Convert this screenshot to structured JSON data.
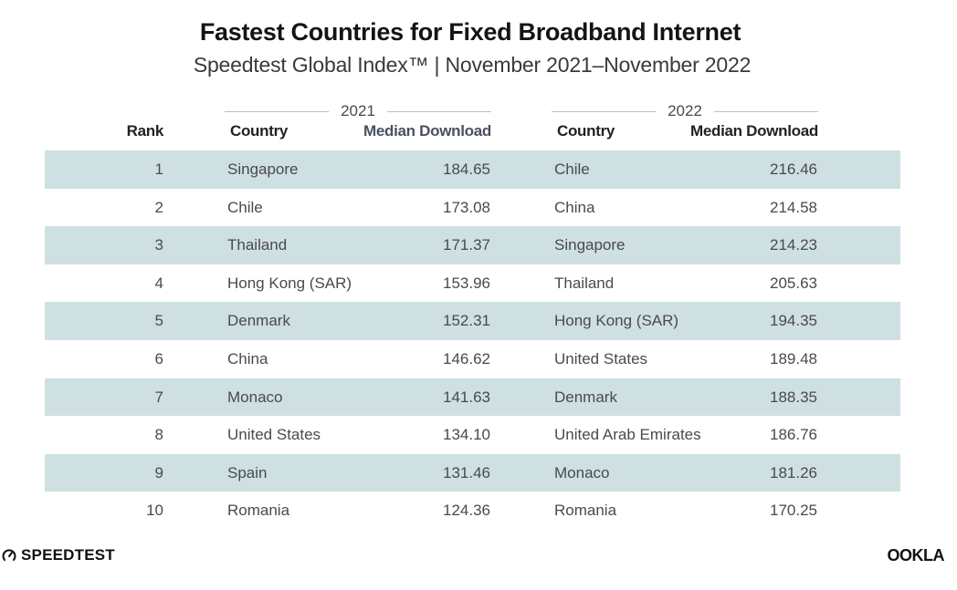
{
  "title": "Fastest Countries for Fixed Broadband Internet",
  "subtitle": "Speedtest Global Index™ | November 2021–November 2022",
  "headers": {
    "rank": "Rank",
    "country": "Country",
    "median_download": "Median Download"
  },
  "years": [
    "2021",
    "2022"
  ],
  "chart_data": {
    "type": "table",
    "title": "Fastest Countries for Fixed Broadband Internet",
    "subtitle": "Speedtest Global Index™ | November 2021–November 2022",
    "columns": [
      "Rank",
      "2021 Country",
      "2021 Median Download",
      "2022 Country",
      "2022 Median Download"
    ],
    "rows": [
      {
        "rank": "1",
        "country_2021": "Singapore",
        "download_2021": "184.65",
        "country_2022": "Chile",
        "download_2022": "216.46"
      },
      {
        "rank": "2",
        "country_2021": "Chile",
        "download_2021": "173.08",
        "country_2022": "China",
        "download_2022": "214.58"
      },
      {
        "rank": "3",
        "country_2021": "Thailand",
        "download_2021": "171.37",
        "country_2022": "Singapore",
        "download_2022": "214.23"
      },
      {
        "rank": "4",
        "country_2021": "Hong Kong (SAR)",
        "download_2021": "153.96",
        "country_2022": "Thailand",
        "download_2022": "205.63"
      },
      {
        "rank": "5",
        "country_2021": "Denmark",
        "download_2021": "152.31",
        "country_2022": "Hong Kong (SAR)",
        "download_2022": "194.35"
      },
      {
        "rank": "6",
        "country_2021": "China",
        "download_2021": "146.62",
        "country_2022": "United States",
        "download_2022": "189.48"
      },
      {
        "rank": "7",
        "country_2021": "Monaco",
        "download_2021": "141.63",
        "country_2022": "Denmark",
        "download_2022": "188.35"
      },
      {
        "rank": "8",
        "country_2021": "United States",
        "download_2021": "134.10",
        "country_2022": "United Arab Emirates",
        "download_2022": "186.76"
      },
      {
        "rank": "9",
        "country_2021": "Spain",
        "download_2021": "131.46",
        "country_2022": "Monaco",
        "download_2022": "181.26"
      },
      {
        "rank": "10",
        "country_2021": "Romania",
        "download_2021": "124.36",
        "country_2022": "Romania",
        "download_2022": "170.25"
      }
    ]
  },
  "brands": {
    "speedtest": "SPEEDTEST",
    "ookla": "OOKLA"
  },
  "colors": {
    "row_shade": "#cfe0e2",
    "title": "#141414",
    "header_muted": "#4a4f63"
  },
  "icons": {
    "speedtest_logo": "speedometer-icon"
  }
}
